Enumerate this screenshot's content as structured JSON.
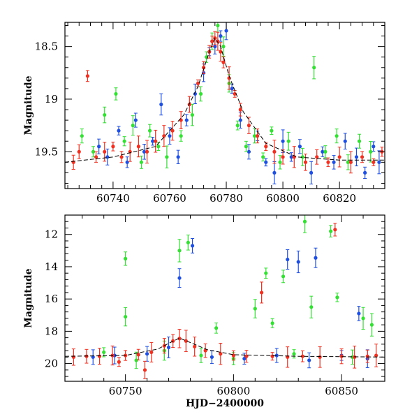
{
  "figure": {
    "xlabel": "HJD−2400000"
  },
  "colors": {
    "blue": "#1f4fe0",
    "green": "#33e033",
    "red": "#f03020",
    "model": "#000000"
  },
  "chart_data": [
    {
      "type": "scatter",
      "title": "",
      "xlabel": "",
      "ylabel": "Magnitude",
      "xlim": [
        60723,
        60836
      ],
      "ylim": [
        19.85,
        18.27
      ],
      "y_inverted": true,
      "x_ticks": [
        60740,
        60760,
        60780,
        60800,
        60820
      ],
      "y_ticks": [
        18.5,
        19,
        19.5
      ],
      "legend": "none",
      "grid": false,
      "series": [
        {
          "color_key": "blue",
          "points": [
            {
              "x": 60735,
              "y": 19.45
            },
            {
              "x": 60738,
              "y": 19.55
            },
            {
              "x": 60742,
              "y": 19.3
            },
            {
              "x": 60745,
              "y": 19.6
            },
            {
              "x": 60748,
              "y": 19.2
            },
            {
              "x": 60751,
              "y": 19.5
            },
            {
              "x": 60754,
              "y": 19.4
            },
            {
              "x": 60757,
              "y": 19.05
            },
            {
              "x": 60760,
              "y": 19.35
            },
            {
              "x": 60763,
              "y": 19.55
            },
            {
              "x": 60766,
              "y": 19.2
            },
            {
              "x": 60769,
              "y": 18.95
            },
            {
              "x": 60772,
              "y": 18.75
            },
            {
              "x": 60774,
              "y": 18.55
            },
            {
              "x": 60776,
              "y": 18.5
            },
            {
              "x": 60778,
              "y": 18.4
            },
            {
              "x": 60780,
              "y": 18.35
            },
            {
              "x": 60782,
              "y": 18.9
            },
            {
              "x": 60785,
              "y": 19.2
            },
            {
              "x": 60788,
              "y": 19.5
            },
            {
              "x": 60791,
              "y": 19.35
            },
            {
              "x": 60794,
              "y": 19.6
            },
            {
              "x": 60797,
              "y": 19.7
            },
            {
              "x": 60800,
              "y": 19.4
            },
            {
              "x": 60803,
              "y": 19.55
            },
            {
              "x": 60806,
              "y": 19.45
            },
            {
              "x": 60810,
              "y": 19.7
            },
            {
              "x": 60814,
              "y": 19.5
            },
            {
              "x": 60818,
              "y": 19.6
            },
            {
              "x": 60822,
              "y": 19.4
            },
            {
              "x": 60826,
              "y": 19.55
            },
            {
              "x": 60829,
              "y": 19.7
            },
            {
              "x": 60832,
              "y": 19.45
            },
            {
              "x": 60834,
              "y": 19.6
            }
          ]
        },
        {
          "color_key": "green",
          "points": [
            {
              "x": 60729,
              "y": 19.35
            },
            {
              "x": 60733,
              "y": 19.5
            },
            {
              "x": 60737,
              "y": 19.15
            },
            {
              "x": 60741,
              "y": 18.95
            },
            {
              "x": 60744,
              "y": 19.4
            },
            {
              "x": 60747,
              "y": 19.25
            },
            {
              "x": 60750,
              "y": 19.6
            },
            {
              "x": 60753,
              "y": 19.3
            },
            {
              "x": 60756,
              "y": 19.45
            },
            {
              "x": 60759,
              "y": 19.55
            },
            {
              "x": 60764,
              "y": 19.35
            },
            {
              "x": 60768,
              "y": 19.15
            },
            {
              "x": 60771,
              "y": 18.95
            },
            {
              "x": 60773,
              "y": 18.6
            },
            {
              "x": 60775,
              "y": 18.45
            },
            {
              "x": 60777,
              "y": 18.3
            },
            {
              "x": 60779,
              "y": 18.5
            },
            {
              "x": 60781,
              "y": 18.85
            },
            {
              "x": 60784,
              "y": 19.25
            },
            {
              "x": 60787,
              "y": 19.45
            },
            {
              "x": 60790,
              "y": 19.35
            },
            {
              "x": 60793,
              "y": 19.55
            },
            {
              "x": 60796,
              "y": 19.3
            },
            {
              "x": 60799,
              "y": 19.6
            },
            {
              "x": 60802,
              "y": 19.4
            },
            {
              "x": 60807,
              "y": 19.55
            },
            {
              "x": 60811,
              "y": 18.7
            },
            {
              "x": 60815,
              "y": 19.5
            },
            {
              "x": 60819,
              "y": 19.35
            },
            {
              "x": 60823,
              "y": 19.6
            },
            {
              "x": 60827,
              "y": 19.4
            },
            {
              "x": 60831,
              "y": 19.5
            }
          ]
        },
        {
          "color_key": "red",
          "points": [
            {
              "x": 60726,
              "y": 19.6
            },
            {
              "x": 60728,
              "y": 19.5
            },
            {
              "x": 60731,
              "y": 18.78
            },
            {
              "x": 60734,
              "y": 19.55
            },
            {
              "x": 60737,
              "y": 19.5
            },
            {
              "x": 60740,
              "y": 19.45
            },
            {
              "x": 60743,
              "y": 19.55
            },
            {
              "x": 60746,
              "y": 19.5
            },
            {
              "x": 60749,
              "y": 19.45
            },
            {
              "x": 60752,
              "y": 19.5
            },
            {
              "x": 60755,
              "y": 19.4
            },
            {
              "x": 60758,
              "y": 19.35
            },
            {
              "x": 60761,
              "y": 19.3
            },
            {
              "x": 60764,
              "y": 19.2
            },
            {
              "x": 60767,
              "y": 19.05
            },
            {
              "x": 60770,
              "y": 18.85
            },
            {
              "x": 60772,
              "y": 18.7
            },
            {
              "x": 60774,
              "y": 18.55
            },
            {
              "x": 60775,
              "y": 18.45
            },
            {
              "x": 60776,
              "y": 18.42
            },
            {
              "x": 60777,
              "y": 18.45
            },
            {
              "x": 60778,
              "y": 18.55
            },
            {
              "x": 60779,
              "y": 18.65
            },
            {
              "x": 60781,
              "y": 18.8
            },
            {
              "x": 60783,
              "y": 18.95
            },
            {
              "x": 60785,
              "y": 19.1
            },
            {
              "x": 60788,
              "y": 19.25
            },
            {
              "x": 60791,
              "y": 19.35
            },
            {
              "x": 60794,
              "y": 19.45
            },
            {
              "x": 60797,
              "y": 19.5
            },
            {
              "x": 60800,
              "y": 19.55
            },
            {
              "x": 60804,
              "y": 19.55
            },
            {
              "x": 60808,
              "y": 19.6
            },
            {
              "x": 60812,
              "y": 19.55
            },
            {
              "x": 60816,
              "y": 19.6
            },
            {
              "x": 60820,
              "y": 19.55
            },
            {
              "x": 60824,
              "y": 19.6
            },
            {
              "x": 60828,
              "y": 19.55
            },
            {
              "x": 60832,
              "y": 19.6
            },
            {
              "x": 60835,
              "y": 19.5
            }
          ]
        }
      ],
      "model_curve": {
        "color_key": "model",
        "points": [
          {
            "x": 60723,
            "y": 19.6
          },
          {
            "x": 60740,
            "y": 19.55
          },
          {
            "x": 60755,
            "y": 19.45
          },
          {
            "x": 60765,
            "y": 19.15
          },
          {
            "x": 60770,
            "y": 18.88
          },
          {
            "x": 60774,
            "y": 18.55
          },
          {
            "x": 60776,
            "y": 18.42
          },
          {
            "x": 60778,
            "y": 18.5
          },
          {
            "x": 60781,
            "y": 18.78
          },
          {
            "x": 60786,
            "y": 19.12
          },
          {
            "x": 60794,
            "y": 19.42
          },
          {
            "x": 60805,
            "y": 19.55
          },
          {
            "x": 60820,
            "y": 19.58
          },
          {
            "x": 60836,
            "y": 19.58
          }
        ]
      }
    },
    {
      "type": "scatter",
      "title": "",
      "xlabel": "HJD−2400000",
      "ylabel": "Magnitude",
      "xlim": [
        60722,
        60870
      ],
      "ylim": [
        21.1,
        10.8
      ],
      "y_inverted": true,
      "x_ticks": [
        60750,
        60800,
        60850
      ],
      "y_ticks": [
        12,
        14,
        16,
        18,
        20
      ],
      "legend": "none",
      "grid": false,
      "series": [
        {
          "color_key": "blue",
          "points": [
            {
              "x": 60775,
              "y": 14.7
            },
            {
              "x": 60781,
              "y": 12.7
            },
            {
              "x": 60825,
              "y": 13.55
            },
            {
              "x": 60830,
              "y": 13.7
            },
            {
              "x": 60838,
              "y": 13.45
            },
            {
              "x": 60858,
              "y": 16.9
            },
            {
              "x": 60735,
              "y": 19.6
            },
            {
              "x": 60745,
              "y": 19.5
            },
            {
              "x": 60760,
              "y": 19.4
            },
            {
              "x": 60770,
              "y": 19.0
            },
            {
              "x": 60790,
              "y": 19.6
            },
            {
              "x": 60805,
              "y": 19.7
            },
            {
              "x": 60820,
              "y": 19.5
            },
            {
              "x": 60835,
              "y": 19.8
            },
            {
              "x": 60850,
              "y": 19.5
            },
            {
              "x": 60862,
              "y": 19.7
            }
          ]
        },
        {
          "color_key": "green",
          "points": [
            {
              "x": 60750,
              "y": 13.5
            },
            {
              "x": 60750,
              "y": 17.1
            },
            {
              "x": 60775,
              "y": 13.0
            },
            {
              "x": 60779,
              "y": 12.5
            },
            {
              "x": 60792,
              "y": 17.8
            },
            {
              "x": 60810,
              "y": 16.6
            },
            {
              "x": 60815,
              "y": 14.4
            },
            {
              "x": 60818,
              "y": 17.5
            },
            {
              "x": 60823,
              "y": 14.6
            },
            {
              "x": 60833,
              "y": 11.2
            },
            {
              "x": 60836,
              "y": 16.5
            },
            {
              "x": 60845,
              "y": 11.8
            },
            {
              "x": 60848,
              "y": 15.9
            },
            {
              "x": 60860,
              "y": 17.2
            },
            {
              "x": 60864,
              "y": 17.6
            },
            {
              "x": 60740,
              "y": 19.3
            },
            {
              "x": 60755,
              "y": 19.8
            },
            {
              "x": 60768,
              "y": 19.2
            },
            {
              "x": 60785,
              "y": 19.5
            },
            {
              "x": 60800,
              "y": 19.7
            },
            {
              "x": 60828,
              "y": 19.4
            },
            {
              "x": 60855,
              "y": 19.6
            }
          ]
        },
        {
          "color_key": "red",
          "points": [
            {
              "x": 60726,
              "y": 19.6
            },
            {
              "x": 60732,
              "y": 19.55
            },
            {
              "x": 60738,
              "y": 19.55
            },
            {
              "x": 60744,
              "y": 19.5
            },
            {
              "x": 60747,
              "y": 19.9
            },
            {
              "x": 60750,
              "y": 19.5
            },
            {
              "x": 60756,
              "y": 19.45
            },
            {
              "x": 60759,
              "y": 20.4
            },
            {
              "x": 60762,
              "y": 19.3
            },
            {
              "x": 60768,
              "y": 18.9
            },
            {
              "x": 60772,
              "y": 18.6
            },
            {
              "x": 60775,
              "y": 18.45
            },
            {
              "x": 60778,
              "y": 18.6
            },
            {
              "x": 60782,
              "y": 18.95
            },
            {
              "x": 60787,
              "y": 19.2
            },
            {
              "x": 60794,
              "y": 19.4
            },
            {
              "x": 60800,
              "y": 19.5
            },
            {
              "x": 60806,
              "y": 19.55
            },
            {
              "x": 60813,
              "y": 15.6
            },
            {
              "x": 60818,
              "y": 19.55
            },
            {
              "x": 60825,
              "y": 19.6
            },
            {
              "x": 60832,
              "y": 19.55
            },
            {
              "x": 60840,
              "y": 19.6
            },
            {
              "x": 60847,
              "y": 11.7
            },
            {
              "x": 60850,
              "y": 19.55
            },
            {
              "x": 60856,
              "y": 19.6
            },
            {
              "x": 60862,
              "y": 19.55
            },
            {
              "x": 60866,
              "y": 19.5
            }
          ]
        }
      ],
      "model_curve": {
        "color_key": "model",
        "points": [
          {
            "x": 60722,
            "y": 19.55
          },
          {
            "x": 60750,
            "y": 19.5
          },
          {
            "x": 60765,
            "y": 19.1
          },
          {
            "x": 60770,
            "y": 18.75
          },
          {
            "x": 60775,
            "y": 18.42
          },
          {
            "x": 60780,
            "y": 18.7
          },
          {
            "x": 60788,
            "y": 19.15
          },
          {
            "x": 60800,
            "y": 19.45
          },
          {
            "x": 60830,
            "y": 19.55
          },
          {
            "x": 60870,
            "y": 19.6
          }
        ]
      }
    }
  ]
}
